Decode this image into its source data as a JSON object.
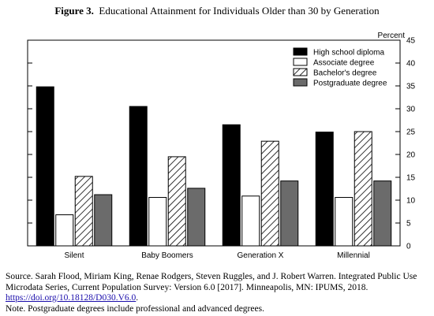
{
  "figure": {
    "label": "Figure 3",
    "title": "Educational Attainment for Individuals Older than 30 by Generation"
  },
  "chart_data": {
    "type": "bar",
    "ylabel": "Percent",
    "ylim": [
      0,
      45
    ],
    "yticks": [
      0,
      5,
      10,
      15,
      20,
      25,
      30,
      35,
      40,
      45
    ],
    "yaxis_side": "right",
    "legend_position": "top-right",
    "grid": false,
    "categories": [
      "Silent",
      "Baby Boomers",
      "Generation X",
      "Millennial"
    ],
    "series": [
      {
        "name": "High school diploma",
        "values": [
          34.8,
          30.5,
          26.5,
          24.9
        ],
        "fill": "#000000",
        "pattern": "solid"
      },
      {
        "name": "Associate degree",
        "values": [
          6.8,
          10.6,
          10.9,
          10.6
        ],
        "fill": "#ffffff",
        "pattern": "solid"
      },
      {
        "name": "Bachelor's degree",
        "values": [
          15.2,
          19.5,
          22.9,
          25.0
        ],
        "fill": "#ffffff",
        "pattern": "hatch"
      },
      {
        "name": "Postgraduate degree",
        "values": [
          11.2,
          12.6,
          14.2,
          14.2
        ],
        "fill": "#6b6b6b",
        "pattern": "solid"
      }
    ]
  },
  "notes": {
    "source": "Source. Sarah Flood, Miriam King, Renae Rodgers, Steven Ruggles, and J. Robert Warren. Integrated Public Use Microdata Series, Current Population Survey: Version 6.0 [2017]. Minneapolis, MN: IPUMS, 2018.",
    "doi": "https://doi.org/10.18128/D030.V6.0",
    "doi_suffix": ".",
    "note": "Note.  Postgraduate degrees include professional and advanced degrees."
  }
}
